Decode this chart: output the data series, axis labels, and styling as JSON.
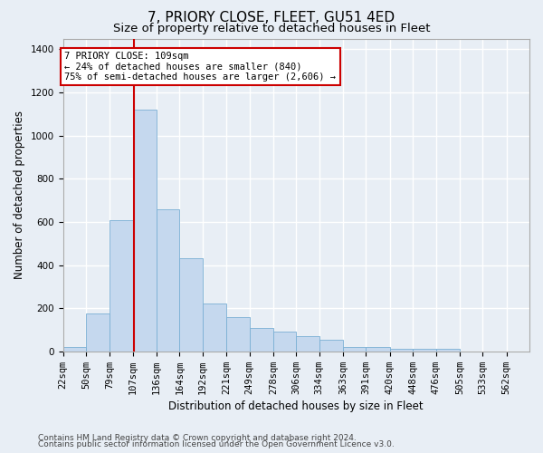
{
  "title": "7, PRIORY CLOSE, FLEET, GU51 4ED",
  "subtitle": "Size of property relative to detached houses in Fleet",
  "xlabel": "Distribution of detached houses by size in Fleet",
  "ylabel": "Number of detached properties",
  "footnote1": "Contains HM Land Registry data © Crown copyright and database right 2024.",
  "footnote2": "Contains public sector information licensed under the Open Government Licence v3.0.",
  "annotation_line1": "7 PRIORY CLOSE: 109sqm",
  "annotation_line2": "← 24% of detached houses are smaller (840)",
  "annotation_line3": "75% of semi-detached houses are larger (2,606) →",
  "bar_color": "#c5d8ee",
  "bar_edge_color": "#7aafd4",
  "vline_color": "#cc0000",
  "vline_x": 109,
  "annotation_box_edge_color": "#cc0000",
  "bin_edges": [
    22,
    50,
    79,
    107,
    136,
    164,
    192,
    221,
    249,
    278,
    306,
    334,
    363,
    391,
    420,
    448,
    476,
    505,
    533,
    562,
    590
  ],
  "bar_heights": [
    20,
    175,
    610,
    1120,
    660,
    430,
    220,
    160,
    110,
    90,
    70,
    55,
    20,
    20,
    10,
    10,
    10,
    0,
    0,
    0
  ],
  "ylim": [
    0,
    1450
  ],
  "yticks": [
    0,
    200,
    400,
    600,
    800,
    1000,
    1200,
    1400
  ],
  "background_color": "#e8eef5",
  "plot_background": "#e8eef5",
  "grid_color": "#ffffff",
  "title_fontsize": 11,
  "subtitle_fontsize": 9.5,
  "label_fontsize": 8.5,
  "tick_fontsize": 7.5,
  "annotation_fontsize": 7.5,
  "footnote_fontsize": 6.5
}
